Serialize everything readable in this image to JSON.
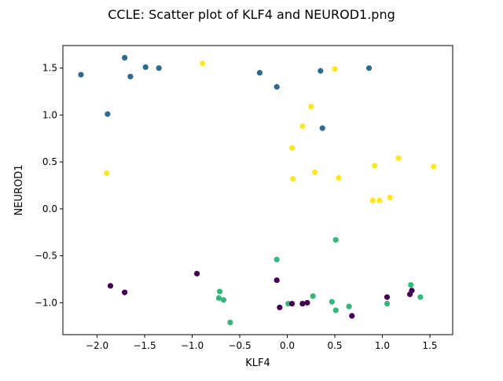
{
  "chart_data": {
    "type": "scatter",
    "title": "CCLE: Scatter plot of KLF4 and NEUROD1.png",
    "xlabel": "KLF4",
    "ylabel": "NEUROD1",
    "xlim": [
      -2.36,
      1.74
    ],
    "ylim": [
      -1.34,
      1.74
    ],
    "xticks": [
      -2.0,
      -1.5,
      -1.0,
      -0.5,
      0.0,
      0.5,
      1.0,
      1.5
    ],
    "xtick_labels": [
      "−2.0",
      "−1.5",
      "−1.0",
      "−0.5",
      "0.0",
      "0.5",
      "1.0",
      "1.5"
    ],
    "yticks": [
      -1.0,
      -0.5,
      0.0,
      0.5,
      1.0,
      1.5
    ],
    "ytick_labels": [
      "−1.0",
      "−0.5",
      "0.0",
      "0.5",
      "1.0",
      "1.5"
    ],
    "grid": false,
    "legend": "none",
    "series": [
      {
        "color": "#2e6a8e",
        "points": [
          [
            -2.17,
            1.43
          ],
          [
            -1.71,
            1.61
          ],
          [
            -1.65,
            1.41
          ],
          [
            -1.49,
            1.51
          ],
          [
            -1.35,
            1.5
          ],
          [
            -1.89,
            1.01
          ],
          [
            -0.29,
            1.45
          ],
          [
            -0.11,
            1.3
          ],
          [
            0.35,
            1.47
          ],
          [
            0.86,
            1.5
          ],
          [
            0.37,
            0.86
          ]
        ]
      },
      {
        "color": "#fde725",
        "points": [
          [
            -0.89,
            1.55
          ],
          [
            0.5,
            1.49
          ],
          [
            0.25,
            1.09
          ],
          [
            0.16,
            0.88
          ],
          [
            0.05,
            0.65
          ],
          [
            -1.9,
            0.38
          ],
          [
            0.06,
            0.32
          ],
          [
            0.29,
            0.39
          ],
          [
            0.54,
            0.33
          ],
          [
            0.92,
            0.46
          ],
          [
            1.17,
            0.54
          ],
          [
            1.54,
            0.45
          ],
          [
            0.9,
            0.09
          ],
          [
            0.97,
            0.09
          ],
          [
            1.08,
            0.12
          ]
        ]
      },
      {
        "color": "#35b779",
        "points": [
          [
            0.51,
            -0.33
          ],
          [
            -0.11,
            -0.54
          ],
          [
            -0.71,
            -0.88
          ],
          [
            -0.72,
            -0.95
          ],
          [
            -0.67,
            -0.97
          ],
          [
            -0.6,
            -1.21
          ],
          [
            0.01,
            -1.01
          ],
          [
            0.27,
            -0.93
          ],
          [
            0.47,
            -0.99
          ],
          [
            0.51,
            -1.08
          ],
          [
            0.65,
            -1.04
          ],
          [
            1.05,
            -1.01
          ],
          [
            1.3,
            -0.81
          ],
          [
            1.4,
            -0.94
          ]
        ]
      },
      {
        "color": "#440154",
        "points": [
          [
            -1.86,
            -0.82
          ],
          [
            -1.71,
            -0.89
          ],
          [
            -0.95,
            -0.69
          ],
          [
            -0.11,
            -0.76
          ],
          [
            -0.08,
            -1.05
          ],
          [
            0.05,
            -1.01
          ],
          [
            0.16,
            -1.01
          ],
          [
            0.21,
            -1.0
          ],
          [
            0.68,
            -1.14
          ],
          [
            1.05,
            -0.94
          ],
          [
            1.29,
            -0.91
          ],
          [
            1.31,
            -0.87
          ]
        ]
      }
    ]
  }
}
